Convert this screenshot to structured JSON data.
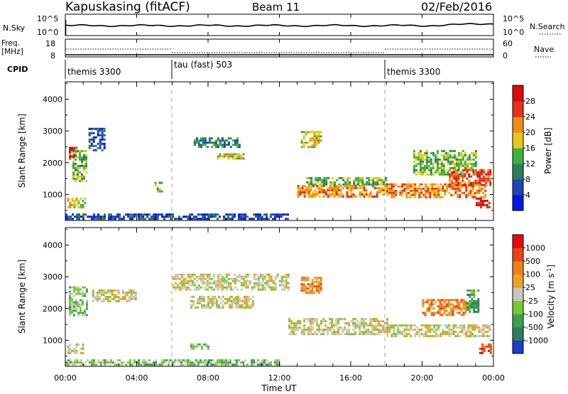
{
  "header": {
    "station": "Kapuskasing (fitACF)",
    "beam": "Beam 11",
    "date": "02/Feb/2016"
  },
  "nsky_panel": {
    "left_label": "N.Sky",
    "left_ticks": [
      "10^5",
      "10^0"
    ],
    "right_label": "N.Search",
    "right_ticks": [
      "10^5",
      "10^0"
    ]
  },
  "freq_panel": {
    "left_label_line1": "Freq.",
    "left_label_line2": "[MHz]",
    "left_ticks": [
      "18",
      "8"
    ],
    "right_label": "Nave",
    "right_ticks": [
      "60",
      "0"
    ]
  },
  "cpid": {
    "label": "CPID",
    "modes": [
      {
        "name": "themis 3300",
        "start_hour": 0
      },
      {
        "name": "tau (fast) 503",
        "start_hour": 6
      },
      {
        "name": "themis 3300",
        "start_hour": 18
      }
    ]
  },
  "chart_data": [
    {
      "type": "heatmap",
      "panel": "power",
      "ylabel": "Slant Range [km]",
      "xlabel": "",
      "xlim": [
        0,
        24
      ],
      "ylim": [
        180,
        4550
      ],
      "yticks": [
        1000,
        2000,
        3000,
        4000
      ],
      "colorbar": {
        "label": "Power [dB]",
        "ticks": [
          "4",
          "8",
          "12",
          "16",
          "20",
          "24",
          "28"
        ],
        "colors": [
          "#0a14e6",
          "#1e46b4",
          "#2d7d5a",
          "#3cb43c",
          "#e6c814",
          "#f08c14",
          "#e63214",
          "#dc0a0a"
        ]
      },
      "regions": [
        {
          "x": [
            0.2,
            0.6
          ],
          "y": [
            2100,
            2500
          ],
          "level": 6
        },
        {
          "x": [
            0.4,
            1.2
          ],
          "y": [
            1400,
            2400
          ],
          "level": 3
        },
        {
          "x": [
            1.3,
            2.2
          ],
          "y": [
            2400,
            3100
          ],
          "level": 1
        },
        {
          "x": [
            0.1,
            1.1
          ],
          "y": [
            600,
            900
          ],
          "level": 4
        },
        {
          "x": [
            5.0,
            5.4
          ],
          "y": [
            1100,
            1400
          ],
          "level": 3
        },
        {
          "x": [
            7.2,
            9.8
          ],
          "y": [
            2500,
            2800
          ],
          "level": 2
        },
        {
          "x": [
            8.5,
            10.0
          ],
          "y": [
            2100,
            2300
          ],
          "level": 4
        },
        {
          "x": [
            13.2,
            14.3
          ],
          "y": [
            2500,
            3000
          ],
          "level": 4
        },
        {
          "x": [
            13.5,
            18.0
          ],
          "y": [
            1300,
            1550
          ],
          "level": 3
        },
        {
          "x": [
            13.0,
            18.0
          ],
          "y": [
            900,
            1300
          ],
          "level": 5
        },
        {
          "x": [
            18.0,
            23.5
          ],
          "y": [
            900,
            1350
          ],
          "level": 5
        },
        {
          "x": [
            19.5,
            23.0
          ],
          "y": [
            1600,
            2400
          ],
          "level": 3
        },
        {
          "x": [
            21.5,
            23.8
          ],
          "y": [
            1300,
            1800
          ],
          "level": 6
        },
        {
          "x": [
            23.0,
            23.8
          ],
          "y": [
            600,
            900
          ],
          "level": 7
        },
        {
          "x": [
            0.0,
            12.5
          ],
          "y": [
            200,
            400
          ],
          "level": 1
        }
      ]
    },
    {
      "type": "heatmap",
      "panel": "velocity",
      "ylabel": "Slant Range [km]",
      "xlabel": "Time UT",
      "xlim": [
        0,
        24
      ],
      "ylim": [
        180,
        4550
      ],
      "yticks": [
        1000,
        2000,
        3000,
        4000
      ],
      "xticks": [
        "00:00",
        "04:00",
        "08:00",
        "12:00",
        "16:00",
        "20:00",
        "00:00"
      ],
      "colorbar": {
        "label": "Velocity [m s^-1]",
        "ticks": [
          "1000",
          "500",
          "100",
          "25",
          "-25",
          "-100",
          "-500",
          "-1000"
        ],
        "colors": [
          "#1e3cc8",
          "#2c7c62",
          "#3ca050",
          "#78c832",
          "#c8c8c0",
          "#f0a028",
          "#f08214",
          "#e64614",
          "#e60a0a"
        ]
      },
      "regions": [
        {
          "x": [
            0.2,
            1.2
          ],
          "y": [
            1800,
            2700
          ],
          "level": 3
        },
        {
          "x": [
            0.1,
            1.0
          ],
          "y": [
            600,
            900
          ],
          "level": 4
        },
        {
          "x": [
            1.5,
            4.0
          ],
          "y": [
            2200,
            2600
          ],
          "level": 4
        },
        {
          "x": [
            6.0,
            12.5
          ],
          "y": [
            2600,
            3100
          ],
          "level": 4
        },
        {
          "x": [
            7.0,
            10.5
          ],
          "y": [
            2000,
            2400
          ],
          "level": 4
        },
        {
          "x": [
            12.5,
            18.0
          ],
          "y": [
            1200,
            1700
          ],
          "level": 4
        },
        {
          "x": [
            18.0,
            23.8
          ],
          "y": [
            1100,
            1500
          ],
          "level": 4
        },
        {
          "x": [
            13.2,
            14.3
          ],
          "y": [
            2500,
            3000
          ],
          "level": 6
        },
        {
          "x": [
            20.0,
            22.5
          ],
          "y": [
            1800,
            2300
          ],
          "level": 6
        },
        {
          "x": [
            22.5,
            23.2
          ],
          "y": [
            1900,
            2600
          ],
          "level": 2
        },
        {
          "x": [
            23.2,
            23.9
          ],
          "y": [
            600,
            900
          ],
          "level": 7
        },
        {
          "x": [
            7.0,
            8.0
          ],
          "y": [
            700,
            900
          ],
          "level": 3
        },
        {
          "x": [
            0.0,
            12.0
          ],
          "y": [
            200,
            400
          ],
          "level": 3
        }
      ]
    }
  ]
}
